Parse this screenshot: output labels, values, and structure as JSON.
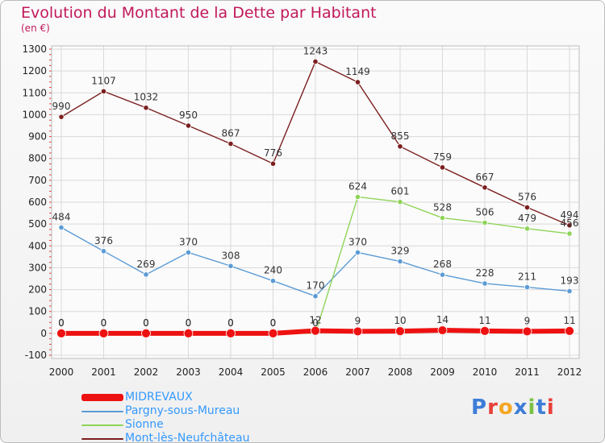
{
  "title": "Evolution du Montant de la Dette par Habitant",
  "subtitle": "(en €)",
  "logo": {
    "text": "Proxiti",
    "colors": [
      "#3d7dd8",
      "#e8413a",
      "#f5a623",
      "#3d7dd8",
      "#7ac143",
      "#3d7dd8",
      "#e8413a"
    ]
  },
  "chart_data": {
    "type": "line",
    "title": "Evolution du Montant de la Dette par Habitant",
    "ylabel": "(en €)",
    "xlabel": "",
    "x": [
      "2000",
      "2001",
      "2002",
      "2003",
      "2004",
      "2005",
      "2006",
      "2007",
      "2008",
      "2009",
      "2010",
      "2011",
      "2012"
    ],
    "ylim": [
      -100,
      1300
    ],
    "yticks": [
      -100,
      0,
      100,
      200,
      300,
      400,
      500,
      600,
      700,
      800,
      900,
      1000,
      1100,
      1200,
      1300
    ],
    "grid": true,
    "legend_position": "bottom-left",
    "series": [
      {
        "name": "Mont-lès-Neufchâteau",
        "color": "#7b1e1e",
        "values": [
          990,
          1107,
          1032,
          950,
          867,
          776,
          1243,
          1149,
          855,
          759,
          667,
          576,
          494
        ]
      },
      {
        "name": "Pargny-sous-Mureau",
        "color": "#5b9bd5",
        "values": [
          484,
          376,
          269,
          370,
          308,
          240,
          170,
          370,
          329,
          268,
          228,
          211,
          193
        ]
      },
      {
        "name": "Sionne",
        "color": "#8fd45a",
        "values": [
          0,
          0,
          0,
          0,
          0,
          0,
          0,
          624,
          601,
          528,
          506,
          479,
          456
        ]
      },
      {
        "name": "MIDREVAUX",
        "color": "#ee1111",
        "values": [
          0,
          0,
          0,
          0,
          0,
          0,
          12,
          9,
          10,
          14,
          11,
          9,
          11
        ]
      }
    ],
    "labels": {
      "Mont-lès-Neufchâteau": [
        "990",
        "1107",
        "1032",
        "950",
        "867",
        "776",
        "1243",
        "1149",
        "855",
        "759",
        "667",
        "576",
        "494"
      ],
      "Pargny-sous-Mureau": [
        "484",
        "376",
        "269",
        "370",
        "308",
        "240",
        "170",
        "370",
        "329",
        "268",
        "228",
        "211",
        "193"
      ],
      "Sionne": [
        "0",
        "0",
        "0",
        "0",
        "0",
        "0",
        "0",
        "624",
        "601",
        "528",
        "506",
        "479",
        "456"
      ],
      "MIDREVAUX": [
        "0",
        "0",
        "0",
        "0",
        "0",
        "0",
        "12",
        "9",
        "10",
        "14",
        "11",
        "9",
        "11"
      ]
    },
    "legend_order": [
      "MIDREVAUX",
      "Pargny-sous-Mureau",
      "Sionne",
      "Mont-lès-Neufchâteau"
    ]
  }
}
